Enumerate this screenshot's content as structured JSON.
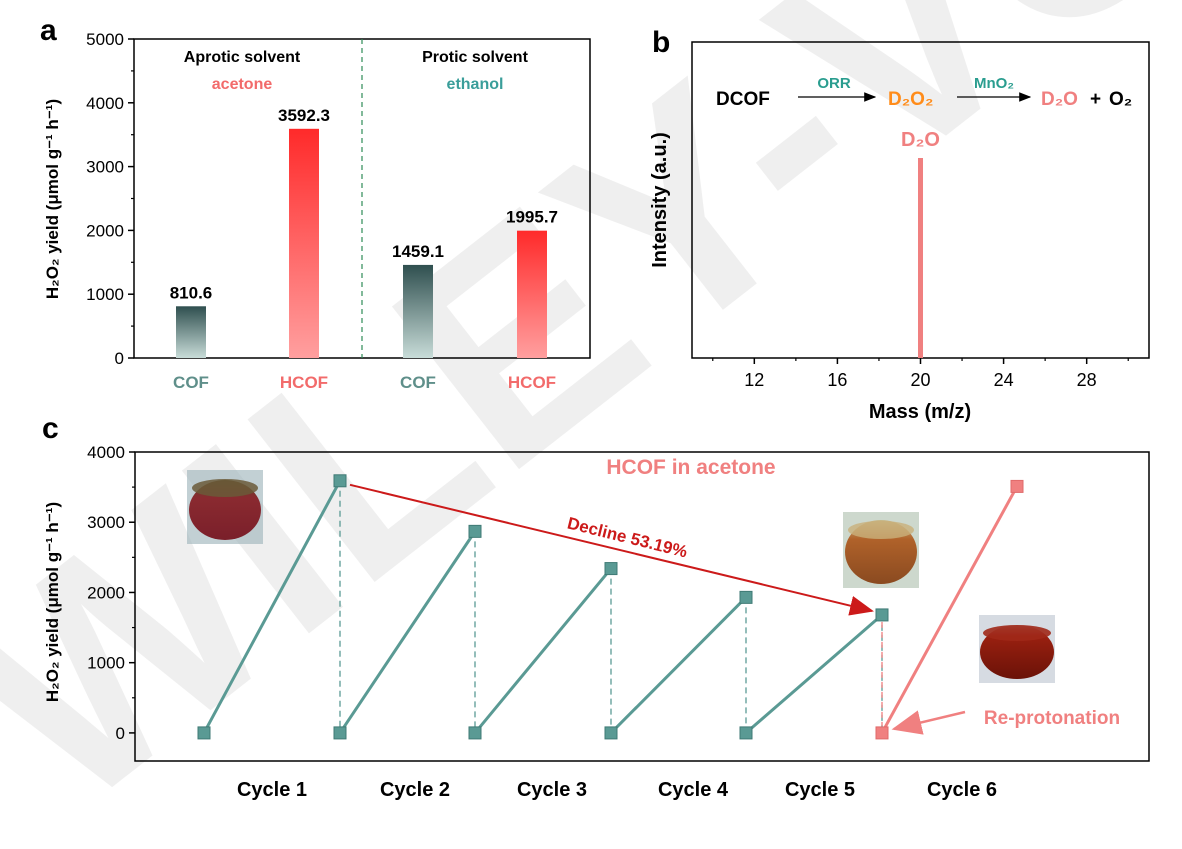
{
  "watermark": "WILEY-VCH",
  "chart_data": [
    {
      "panel": "a",
      "type": "bar",
      "ylabel": "H₂O₂ yield (μmol g⁻¹ h⁻¹)",
      "ylim": [
        0,
        5000
      ],
      "yticks": [
        0,
        1000,
        2000,
        3000,
        4000,
        5000
      ],
      "categories": [
        "COF",
        "HCOF",
        "COF",
        "HCOF"
      ],
      "values": [
        810.6,
        3592.3,
        1459.1,
        1995.7
      ],
      "value_labels": [
        "810.6",
        "3592.3",
        "1459.1",
        "1995.7"
      ],
      "groups": [
        {
          "title": "Aprotic solvent",
          "solvent": "acetone",
          "solvent_color": "#f26b6b"
        },
        {
          "title": "Protic solvent",
          "solvent": "ethanol",
          "solvent_color": "#3a9e9a"
        }
      ],
      "colors": {
        "COF": "#2f4f4f",
        "HCOF": "#ff3030",
        "COF_label": "#5f8f8a",
        "HCOF_label": "#f26b6b",
        "divider": "#2e8b57"
      }
    },
    {
      "panel": "b",
      "type": "bar",
      "xlabel": "Mass (m/z)",
      "ylabel": "Intensity (a.u.)",
      "xlim": [
        9,
        31
      ],
      "xticks": [
        12,
        16,
        20,
        24,
        28
      ],
      "peak": {
        "x": 20,
        "label": "D₂O",
        "color": "#f08080"
      },
      "scheme": {
        "start": "DCOF",
        "arrow1": "ORR",
        "mid": "D₂O₂",
        "arrow2": "MnO₂",
        "end1": "D₂O",
        "plus": "+",
        "end2": "O₂",
        "colors": {
          "arrow_text": "#2a9d8f",
          "mid": "#ff8c1a",
          "end1": "#f08080",
          "start": "#000000"
        }
      }
    },
    {
      "panel": "c",
      "type": "line",
      "title": "HCOF in acetone",
      "ylabel": "H₂O₂ yield (μmol g⁻¹ h⁻¹)",
      "ylim": [
        -400,
        4000
      ],
      "yticks": [
        0,
        1000,
        2000,
        3000,
        4000
      ],
      "categories": [
        "Cycle 1",
        "Cycle 2",
        "Cycle 3",
        "Cycle 4",
        "Cycle 5",
        "Cycle 6"
      ],
      "series": [
        {
          "points": [
            [
              0,
              0
            ],
            [
              1,
              3590
            ]
          ],
          "color": "#5a9a94"
        },
        {
          "points": [
            [
              1,
              0
            ],
            [
              2,
              2870
            ]
          ],
          "color": "#5a9a94"
        },
        {
          "points": [
            [
              2,
              0
            ],
            [
              3,
              2340
            ]
          ],
          "color": "#5a9a94"
        },
        {
          "points": [
            [
              3,
              0
            ],
            [
              4,
              1930
            ]
          ],
          "color": "#5a9a94"
        },
        {
          "points": [
            [
              4,
              0
            ],
            [
              5,
              1680
            ]
          ],
          "color": "#5a9a94"
        },
        {
          "points": [
            [
              5,
              0
            ],
            [
              6,
              3510
            ]
          ],
          "color": "#f08080"
        }
      ],
      "annotations": {
        "decline": "Decline 53.19%",
        "decline_color": "#cc1a1a",
        "reprotonation": "Re-protonation",
        "reprotonation_color": "#f08080"
      }
    }
  ]
}
